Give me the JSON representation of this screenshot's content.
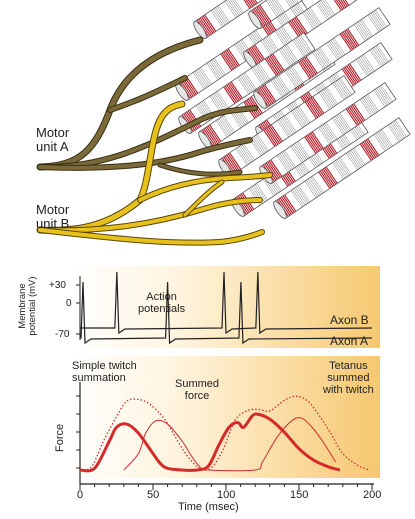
{
  "top_panel": {
    "unit_a_label_line1": "Motor",
    "unit_a_label_line2": "unit A",
    "unit_b_label_line1": "Motor",
    "unit_b_label_line2": "unit B"
  },
  "middle_panel": {
    "ylabel_line1": "Membrane",
    "ylabel_line2": "potential (mV)",
    "tick_plus30": "+30",
    "tick_zero": "0",
    "tick_minus70": "-70",
    "annotation_line1": "Action",
    "annotation_line2": "potentials",
    "axon_b_label": "Axon B",
    "axon_a_label": "Axon A"
  },
  "bottom_panel": {
    "ylabel": "Force",
    "annotation_simple_line1": "Simple twitch",
    "annotation_simple_line2": "summation",
    "annotation_summed_line1": "Summed",
    "annotation_summed_line2": "force",
    "annotation_tetanus_line1": "Tetanus",
    "annotation_tetanus_line2": "summed",
    "annotation_tetanus_line3": "with twitch",
    "xlabel": "Time (msec)",
    "x_ticks": [
      "0",
      "50",
      "100",
      "150",
      "200"
    ]
  },
  "colors": {
    "unit_a_axon": "#7a6a3a",
    "unit_b_axon": "#e8c21c",
    "muscle_stripe": "#b41e2a",
    "force_curve": "#d62a2a",
    "panel_gradient_start": "#ffffff",
    "panel_gradient_end": "#f6c870"
  },
  "chart_data": {
    "type": "line",
    "xlabel": "Time (msec)",
    "ylabel": "Force",
    "xlim": [
      0,
      200
    ],
    "x_ticks": [
      0,
      50,
      100,
      150,
      200
    ],
    "series": [
      {
        "style": "thick-solid",
        "x": [
          0,
          10,
          20,
          25,
          32,
          40,
          50,
          55,
          60,
          70,
          80,
          88,
          95,
          102,
          108,
          112,
          118,
          122,
          130,
          140,
          150,
          160,
          170,
          178
        ],
        "y": [
          0,
          0.02,
          0.35,
          0.52,
          0.56,
          0.45,
          0.2,
          0.08,
          0.02,
          0,
          0,
          0.05,
          0.3,
          0.52,
          0.58,
          0.52,
          0.66,
          0.68,
          0.62,
          0.46,
          0.26,
          0.12,
          0.04,
          0
        ]
      },
      {
        "style": "thin-solid",
        "x": [
          30,
          40,
          45,
          52,
          60,
          70,
          76,
          82,
          88,
          120,
          125,
          135,
          145,
          152,
          160,
          168,
          175
        ],
        "y": [
          0,
          0.2,
          0.45,
          0.6,
          0.56,
          0.35,
          0.18,
          0.04,
          0,
          0,
          0.1,
          0.4,
          0.6,
          0.63,
          0.5,
          0.3,
          0.1
        ]
      },
      {
        "style": "dotted",
        "x": [
          0,
          8,
          16,
          25,
          32,
          40,
          48,
          58,
          66,
          74,
          82,
          90,
          98,
          106,
          114,
          122,
          130,
          140,
          148,
          156,
          164,
          172,
          180,
          190,
          198
        ],
        "y": [
          0,
          0.04,
          0.35,
          0.65,
          0.84,
          0.86,
          0.8,
          0.62,
          0.38,
          0.16,
          0.02,
          0.03,
          0.25,
          0.6,
          0.72,
          0.74,
          0.72,
          0.85,
          0.9,
          0.84,
          0.66,
          0.44,
          0.2,
          0.06,
          0
        ]
      }
    ]
  },
  "spike_data": {
    "axon_b_spikes_x": [
      0.12,
      0.5,
      0.62
    ],
    "axon_a_spikes_x": [
      0.0,
      0.3,
      0.56
    ]
  }
}
